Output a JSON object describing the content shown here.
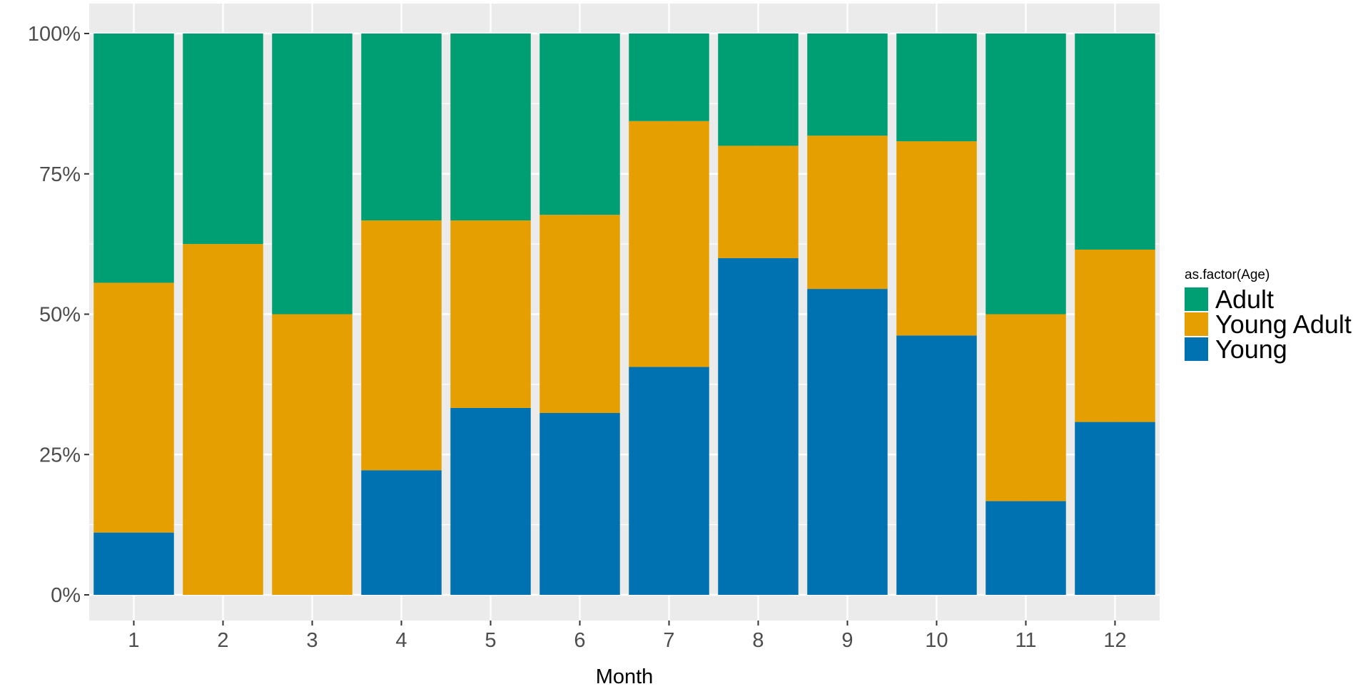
{
  "chart_data": {
    "type": "bar",
    "stacked": true,
    "normalized": true,
    "title": "",
    "xlabel": "Month",
    "ylabel": "",
    "categories": [
      "1",
      "2",
      "3",
      "4",
      "5",
      "6",
      "7",
      "8",
      "9",
      "10",
      "11",
      "12"
    ],
    "ylim": [
      0,
      1
    ],
    "ytick_values": [
      0,
      0.25,
      0.5,
      0.75,
      1
    ],
    "ytick_labels": [
      "0%",
      "25%",
      "50%",
      "75%",
      "100%"
    ],
    "grid": true,
    "legend": {
      "title": "as.factor(Age)",
      "position": "right",
      "entries": [
        "Adult",
        "Young Adult",
        "Young"
      ]
    },
    "series": [
      {
        "name": "Young",
        "color": "#0072B2",
        "values": [
          0.111,
          0,
          0,
          0.222,
          0.333,
          0.324,
          0.406,
          0.6,
          0.545,
          0.462,
          0.167,
          0.308
        ]
      },
      {
        "name": "Young Adult",
        "color": "#E69F00",
        "values": [
          0.445,
          0.625,
          0.5,
          0.445,
          0.334,
          0.353,
          0.438,
          0.2,
          0.273,
          0.346,
          0.333,
          0.307
        ]
      },
      {
        "name": "Adult",
        "color": "#009E73",
        "values": [
          0.444,
          0.375,
          0.5,
          0.333,
          0.333,
          0.323,
          0.156,
          0.2,
          0.182,
          0.192,
          0.5,
          0.385
        ]
      }
    ]
  }
}
